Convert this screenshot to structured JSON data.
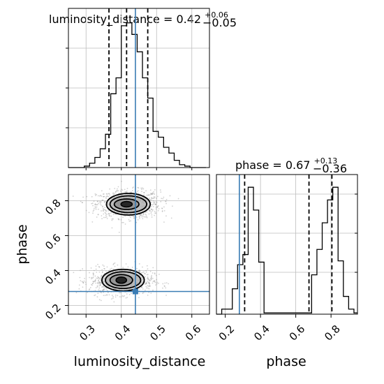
{
  "chart_data": {
    "type": "corner",
    "parameters": [
      "luminosity_distance",
      "phase"
    ],
    "axis_labels": {
      "x_left": "luminosity_distance",
      "x_right": "phase",
      "y_left": "phase"
    },
    "titles": {
      "luminosity_distance": {
        "prefix": "luminosity_distance = 0.42",
        "upper": "+0.06",
        "lower": "−0.05"
      },
      "phase": {
        "prefix": "phase = 0.67",
        "upper": "+0.13",
        "lower": "−0.36"
      }
    },
    "xlim_luminosity_distance": [
      0.25,
      0.65
    ],
    "xlim_phase": [
      0.15,
      0.95
    ],
    "ylim_phase": [
      0.15,
      0.95
    ],
    "ticks_luminosity_distance": [
      0.3,
      0.4,
      0.5,
      0.6
    ],
    "tick_labels_luminosity_distance": [
      "0.3",
      "0.4",
      "0.5",
      "0.6"
    ],
    "ticks_phase": [
      0.2,
      0.4,
      0.6,
      0.8
    ],
    "tick_labels_phase": [
      "0.2",
      "0.4",
      "0.6",
      "0.8"
    ],
    "grid": true,
    "truth": {
      "luminosity_distance": 0.44,
      "phase": 0.28
    },
    "quantiles": {
      "luminosity_distance": [
        0.365,
        0.415,
        0.475
      ],
      "phase": [
        0.31,
        0.675,
        0.805
      ]
    },
    "hist_luminosity_distance": {
      "edges": [
        0.25,
        0.265,
        0.28,
        0.295,
        0.31,
        0.325,
        0.34,
        0.355,
        0.37,
        0.385,
        0.4,
        0.415,
        0.43,
        0.445,
        0.46,
        0.475,
        0.49,
        0.505,
        0.52,
        0.535,
        0.55,
        0.565,
        0.58,
        0.595,
        0.61,
        0.625,
        0.64
      ],
      "counts": [
        0,
        0,
        0,
        1,
        3,
        7,
        13,
        23,
        51,
        62,
        98,
        100,
        92,
        80,
        62,
        48,
        25,
        21,
        14,
        10,
        5,
        2,
        1,
        0,
        0,
        0
      ]
    },
    "hist_phase": {
      "edges": [
        0.15,
        0.18,
        0.21,
        0.24,
        0.27,
        0.3,
        0.33,
        0.36,
        0.39,
        0.42,
        0.45,
        0.48,
        0.51,
        0.54,
        0.57,
        0.6,
        0.63,
        0.66,
        0.69,
        0.72,
        0.75,
        0.78,
        0.81,
        0.84,
        0.87,
        0.9,
        0.93,
        0.95
      ],
      "counts": [
        0,
        4,
        4,
        20,
        39,
        47,
        100,
        82,
        41,
        1,
        1,
        1,
        1,
        1,
        1,
        1,
        1,
        1,
        31,
        51,
        72,
        90,
        100,
        42,
        14,
        4,
        1
      ]
    },
    "clusters": [
      {
        "x": 0.42,
        "y": 0.78,
        "sx": 0.045,
        "sy": 0.04,
        "n": 1000
      },
      {
        "x": 0.4,
        "y": 0.34,
        "sx": 0.045,
        "sy": 0.038,
        "n": 950
      }
    ],
    "contours": [
      {
        "x": 0.42,
        "y": 0.78,
        "rx": 0.062,
        "ry": 0.062
      },
      {
        "x": 0.42,
        "y": 0.78,
        "rx": 0.052,
        "ry": 0.048
      },
      {
        "x": 0.415,
        "y": 0.78,
        "rx": 0.035,
        "ry": 0.03
      },
      {
        "x": 0.415,
        "y": 0.78,
        "rx": 0.016,
        "ry": 0.016
      },
      {
        "x": 0.405,
        "y": 0.345,
        "rx": 0.06,
        "ry": 0.062
      },
      {
        "x": 0.405,
        "y": 0.345,
        "rx": 0.05,
        "ry": 0.048
      },
      {
        "x": 0.4,
        "y": 0.345,
        "rx": 0.032,
        "ry": 0.032
      },
      {
        "x": 0.4,
        "y": 0.345,
        "rx": 0.015,
        "ry": 0.018
      }
    ]
  },
  "colors": {
    "truth": "#3a7cb4",
    "grid": "#bcbcbc",
    "scatter": "#9a9a9a",
    "line": "#000000"
  }
}
